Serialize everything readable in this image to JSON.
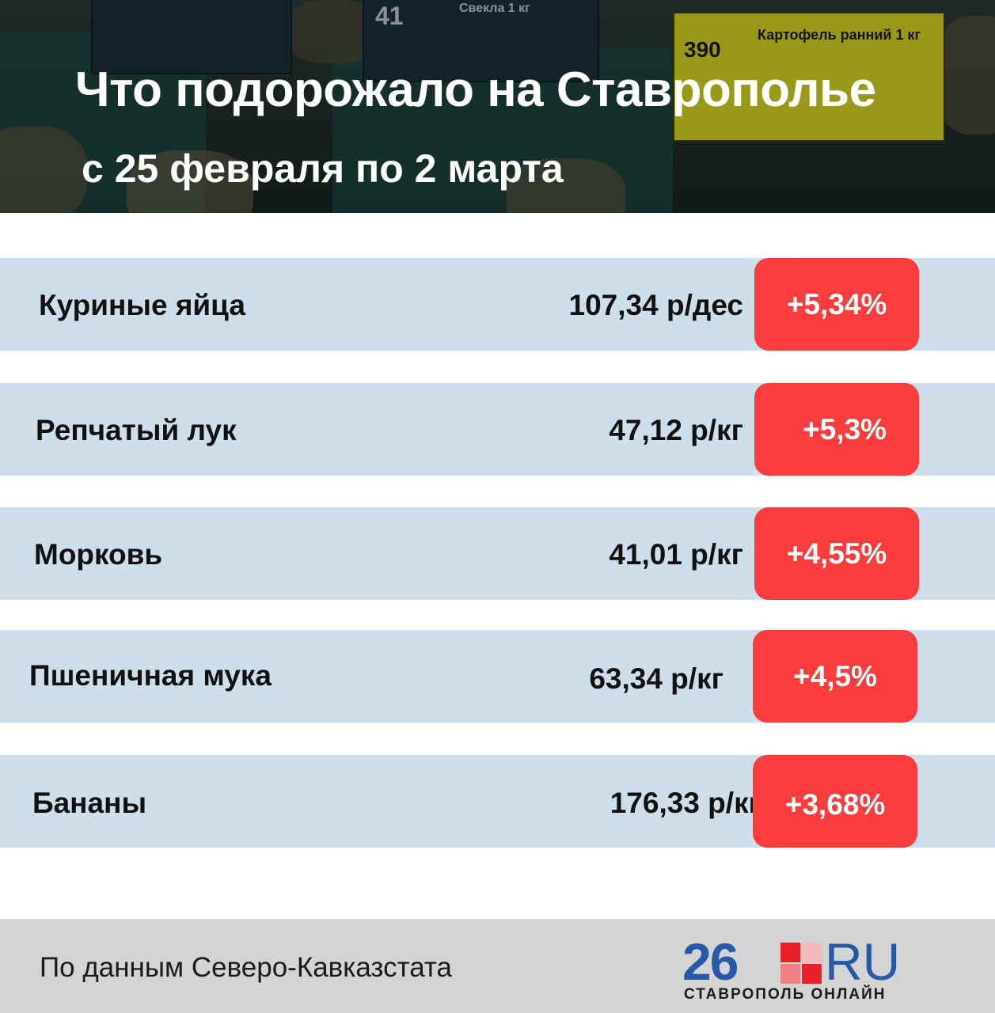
{
  "header": {
    "title": "Что подорожало на Ставрополье",
    "subtitle": "с 25 февраля по 2 марта",
    "photo_tags": [
      {
        "num": "41",
        "label": "Свекла 1 кг"
      },
      {
        "num": "390",
        "label": "Картофель ранний 1 кг"
      }
    ]
  },
  "items": [
    {
      "name": "Куриные яйца",
      "price": "107,34 р/дес",
      "change": "+5,34%"
    },
    {
      "name": "Репчатый лук",
      "price": "47,12 р/кг",
      "change": "+5,3%"
    },
    {
      "name": "Морковь",
      "price": "41,01 р/кг",
      "change": "+4,55%"
    },
    {
      "name": "Пшеничная мука",
      "price": "63,34 р/кг",
      "change": "+4,5%"
    },
    {
      "name": "Бананы",
      "price": "176,33 р/кг",
      "change": "+3,68%"
    }
  ],
  "footer": {
    "source": "По данным Северо-Кавказстата",
    "logo": {
      "number": "26",
      "domain": "RU",
      "tagline": "СТАВРОПОЛЬ ОНЛАЙН"
    }
  },
  "colors": {
    "row_background": "#cfdeeb",
    "badge": "#fb3c3c",
    "logo_blue": "#2659a8",
    "logo_red": "#e8202a"
  }
}
